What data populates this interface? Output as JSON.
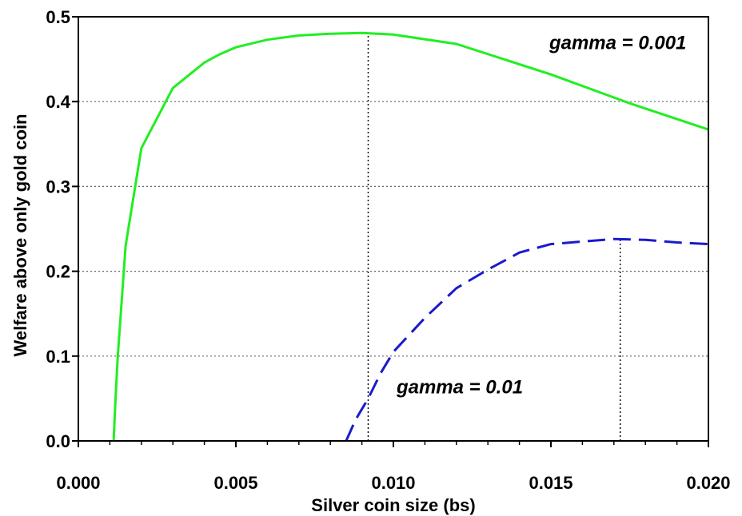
{
  "chart_data": {
    "type": "line",
    "title": "",
    "xlabel": "Silver coin size (bs)",
    "ylabel": "Welfare above only gold coin",
    "xlim": [
      0,
      0.02
    ],
    "ylim": [
      0,
      0.5
    ],
    "x_ticks": [
      "0.000",
      "0.005",
      "0.010",
      "0.015",
      "0.020"
    ],
    "x_tick_values": [
      0,
      0.005,
      0.01,
      0.015,
      0.02
    ],
    "y_ticks": [
      "0.0",
      "0.1",
      "0.2",
      "0.3",
      "0.4",
      "0.5"
    ],
    "y_tick_values": [
      0,
      0.1,
      0.2,
      0.3,
      0.4,
      0.5
    ],
    "grid": "horizontal dotted",
    "series": [
      {
        "label": "gamma = 0.001",
        "color": "#22ee22",
        "style": "solid",
        "x": [
          0.00112,
          0.00118,
          0.00125,
          0.0015,
          0.002,
          0.003,
          0.004,
          0.0045,
          0.005,
          0.006,
          0.007,
          0.008,
          0.009,
          0.01,
          0.012,
          0.015,
          0.0175,
          0.02
        ],
        "y": [
          0.0,
          0.05,
          0.1,
          0.23,
          0.345,
          0.416,
          0.446,
          0.456,
          0.464,
          0.473,
          0.478,
          0.48,
          0.481,
          0.479,
          0.468,
          0.432,
          0.398,
          0.367
        ]
      },
      {
        "label": "gamma = 0.01",
        "color": "#1a1acc",
        "style": "dashed",
        "x": [
          0.0085,
          0.0088,
          0.0092,
          0.0096,
          0.01,
          0.011,
          0.012,
          0.013,
          0.014,
          0.015,
          0.016,
          0.017,
          0.018,
          0.019,
          0.02
        ],
        "y": [
          0.0,
          0.025,
          0.05,
          0.08,
          0.105,
          0.145,
          0.18,
          0.202,
          0.222,
          0.232,
          0.235,
          0.238,
          0.237,
          0.234,
          0.232
        ]
      }
    ],
    "reference_lines": [
      {
        "x": 0.0092,
        "y_top": 0.481
      },
      {
        "x": 0.0172,
        "y_top": 0.238
      }
    ],
    "annotations": [
      {
        "text": "gamma = 0.001",
        "x": 0.0193,
        "y": 0.462,
        "anchor": "end"
      },
      {
        "text": "gamma = 0.01",
        "x": 0.0101,
        "y": 0.056,
        "anchor": "start"
      }
    ]
  }
}
